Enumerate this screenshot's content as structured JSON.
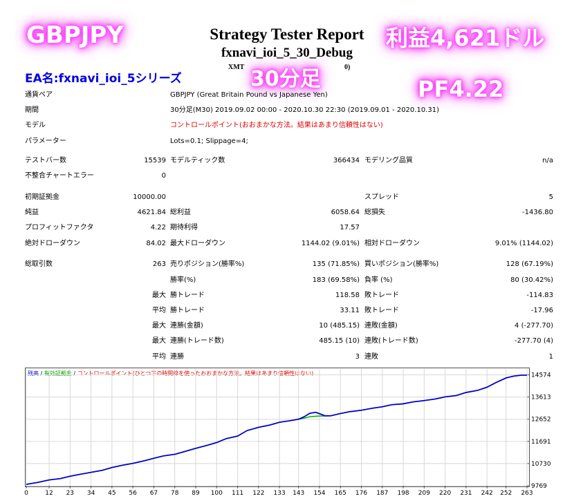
{
  "overlays": {
    "pair": "GBPJPY",
    "profit": "利益4,621ドル",
    "timeframe": "30分足",
    "pf": "PF4.22",
    "ea_name": "EA名:fxnavi_ioi_5シリーズ"
  },
  "report": {
    "title": "Strategy Tester Report",
    "subtitle": "fxnavi_ioi_5_30_Debug",
    "server_left": "XMT",
    "server_right": "0)"
  },
  "settings": [
    {
      "label": "通貨ペア",
      "value": "GBPJPY (Great Britain Pound vs Japanese Yen)"
    },
    {
      "label": "期間",
      "value": "30分足(M30) 2019.09.02 00:00 - 2020.10.30 22:30 (2019.09.01 - 2020.10.31)"
    },
    {
      "label": "モデル",
      "value": "コントロールポイント(おおまかな方法。結果はあまり信頼性はない)"
    },
    {
      "label": "パラメーター",
      "value": "Lots=0.1; Slippage=4;"
    }
  ],
  "stats": {
    "bars_label": "テストバー数",
    "bars": "15539",
    "ticks_label": "モデルティック数",
    "ticks": "366434",
    "quality_label": "モデリング品質",
    "quality": "n/a",
    "mismatch_label": "不整合チャートエラー",
    "mismatch": "0",
    "deposit_label": "初期証拠金",
    "deposit": "10000.00",
    "spread_label": "スプレッド",
    "spread": "5",
    "net_label": "純益",
    "net": "4621.84",
    "gross_profit_label": "総利益",
    "gross_profit": "6058.64",
    "gross_loss_label": "総損失",
    "gross_loss": "-1436.80",
    "pf_label": "プロフィットファクタ",
    "pf": "4.22",
    "expected_label": "期待利得",
    "expected": "17.57",
    "abs_dd_label": "絶対ドローダウン",
    "abs_dd": "84.02",
    "max_dd_label": "最大ドローダウン",
    "max_dd": "1144.02 (9.01%)",
    "rel_dd_label": "相対ドローダウン",
    "rel_dd": "9.01% (1144.02)",
    "trades_label": "総取引数",
    "trades": "263",
    "short_label": "売りポジション(勝率%)",
    "short": "135 (71.85%)",
    "long_label": "買いポジション(勝率%)",
    "long": "128 (67.19%)",
    "win_label": "勝率(%)",
    "win": "183 (69.58%)",
    "loss_label": "負率 (%)",
    "loss": "80 (30.42%)",
    "max1": "最大",
    "largest_win_label": "勝トレード",
    "largest_win": "118.58",
    "largest_loss_label": "敗トレード",
    "largest_loss": "-114.83",
    "avg1": "平均",
    "avg_win_label": "勝トレード",
    "avg_win": "33.11",
    "avg_loss_label": "敗トレード",
    "avg_loss": "-17.96",
    "max2": "最大",
    "cons_wins_amt_label": "連勝(金額)",
    "cons_wins_amt": "10 (485.15)",
    "cons_loss_amt_label": "連敗(金額)",
    "cons_loss_amt": "4 (-277.70)",
    "max3": "最大",
    "cons_wins_cnt_label": "連勝(トレード数)",
    "cons_wins_cnt": "485.15 (10)",
    "cons_loss_cnt_label": "連敗(トレード数)",
    "cons_loss_cnt": "-277.70 (4)",
    "avg2": "平均",
    "avg_cons_win_label": "連勝",
    "avg_cons_win": "3",
    "avg_cons_loss_label": "連敗",
    "avg_cons_loss": "1"
  },
  "chart_legend": {
    "balance": "残高",
    "sep1": " / ",
    "equity": "有効証拠金",
    "sep2": " / ",
    "model": "コントロールポイント(ひとつ下の時間枠を使ったおおまかな方法。結果はあまり信頼性はない)"
  },
  "chart_data": {
    "type": "line",
    "x_ticks": [
      0,
      12,
      23,
      34,
      45,
      56,
      67,
      78,
      89,
      100,
      111,
      122,
      133,
      143,
      154,
      165,
      176,
      187,
      198,
      209,
      220,
      231,
      242,
      252,
      263
    ],
    "y_ticks": [
      9769,
      10730,
      11691,
      12652,
      13613,
      14574
    ],
    "ylim": [
      9769,
      14830
    ],
    "xlim": [
      0,
      263
    ],
    "series": [
      {
        "name": "残高",
        "color": "#0000c8",
        "x": [
          0,
          6,
          12,
          18,
          23,
          28,
          34,
          40,
          45,
          50,
          56,
          62,
          67,
          72,
          78,
          84,
          89,
          95,
          100,
          105,
          111,
          116,
          122,
          128,
          133,
          138,
          143,
          146,
          149,
          152,
          154,
          157,
          160,
          165,
          170,
          176,
          182,
          187,
          192,
          198,
          203,
          209,
          215,
          220,
          226,
          231,
          237,
          242,
          247,
          252,
          256,
          260,
          263
        ],
        "y": [
          9830,
          9910,
          10020,
          10080,
          10180,
          10260,
          10350,
          10440,
          10560,
          10650,
          10740,
          10850,
          10960,
          11060,
          11130,
          11270,
          11390,
          11520,
          11640,
          11810,
          11920,
          12160,
          12300,
          12400,
          12520,
          12580,
          12650,
          12760,
          12910,
          12950,
          12890,
          12800,
          12800,
          12900,
          12980,
          13040,
          13130,
          13190,
          13280,
          13320,
          13400,
          13460,
          13530,
          13620,
          13680,
          13810,
          13900,
          14040,
          14250,
          14440,
          14520,
          14560,
          14560
        ]
      }
    ]
  }
}
